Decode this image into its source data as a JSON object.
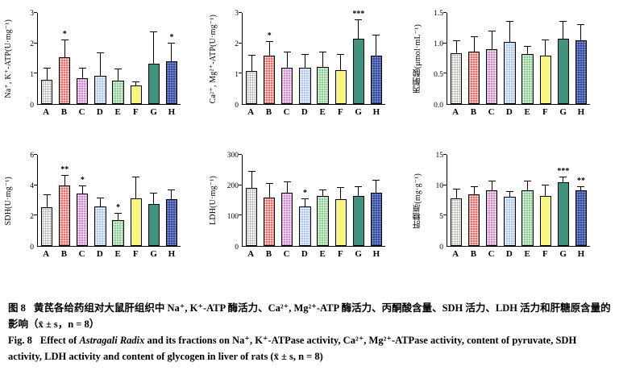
{
  "figure": {
    "caption_cn_label": "图 8",
    "caption_cn_text": "黄芪各给药组对大鼠肝组织中 Na⁺, K⁺-ATP 酶活力、Ca²⁺, Mg²⁺-ATP 酶活力、丙酮酸含量、SDH 活力、LDH 活力和肝糖原含量的影响（x̄ ± s，n = 8）",
    "caption_en_label": "Fig. 8",
    "caption_en_prefix": "Effect of ",
    "caption_en_italic": "Astragali Radix",
    "caption_en_suffix": " and its fractions on Na⁺, K⁺-ATPase activity, Ca²⁺, Mg²⁺-ATPase activity, content of pyruvate, SDH activity, LDH activity and content of glycogen in liver of rats (x̄ ± s, n = 8)"
  },
  "style": {
    "axis_color": "#000000",
    "sig_color": "#000000",
    "bars": {
      "A": {
        "fill": "#f4f3ef",
        "dot": "#a8a8a8"
      },
      "B": {
        "fill": "#ee6e69",
        "dot": "#ffffff"
      },
      "C": {
        "fill": "#d28fd3",
        "dot": "#ffffff"
      },
      "D": {
        "fill": "#afcbe9",
        "dot": "#ffffff"
      },
      "E": {
        "fill": "#8bd091",
        "dot": "#ffffff"
      },
      "F": {
        "fill": "#f9f67d",
        "dot": null
      },
      "G": {
        "fill": "#3f9480",
        "dot": null
      },
      "H": {
        "fill": "#33489f",
        "dot": "#8fa0d8"
      }
    }
  },
  "chart_data": [
    {
      "type": "bar",
      "ylabel": "Na⁺, K⁺-ATP(U·mg⁻¹)",
      "ymax": 3,
      "yticks": [
        "0",
        "1",
        "2",
        "3"
      ],
      "categories": [
        "A",
        "B",
        "C",
        "D",
        "E",
        "F",
        "G",
        "H"
      ],
      "values": [
        0.8,
        1.55,
        0.85,
        0.92,
        0.78,
        0.6,
        1.32,
        1.4
      ],
      "errors": [
        0.38,
        0.55,
        0.33,
        0.75,
        0.35,
        0.12,
        1.05,
        0.6
      ],
      "sig": [
        "",
        "*",
        "",
        "",
        "",
        "",
        "",
        "*"
      ]
    },
    {
      "type": "bar",
      "ylabel": "Ca²⁺, Mg²⁺-ATP(U·mg⁻¹)",
      "ymax": 3,
      "yticks": [
        "0",
        "1",
        "2",
        "3"
      ],
      "categories": [
        "A",
        "B",
        "C",
        "D",
        "E",
        "F",
        "G",
        "H"
      ],
      "values": [
        1.1,
        1.6,
        1.2,
        1.2,
        1.22,
        1.12,
        2.15,
        1.6
      ],
      "errors": [
        0.5,
        0.45,
        0.5,
        0.42,
        0.48,
        0.5,
        0.6,
        0.65
      ],
      "sig": [
        "",
        "*",
        "",
        "",
        "",
        "",
        "***",
        ""
      ]
    },
    {
      "type": "bar",
      "ylabel": "丙酮酸(μmol·mL⁻¹)",
      "ymax": 1.5,
      "yticks": [
        "0.0",
        "0.5",
        "1.0",
        "1.5"
      ],
      "categories": [
        "A",
        "B",
        "C",
        "D",
        "E",
        "F",
        "G",
        "H"
      ],
      "values": [
        0.84,
        0.86,
        0.9,
        1.02,
        0.82,
        0.8,
        1.08,
        1.05
      ],
      "errors": [
        0.2,
        0.24,
        0.3,
        0.33,
        0.12,
        0.25,
        0.27,
        0.25
      ],
      "sig": [
        "",
        "",
        "",
        "",
        "",
        "",
        "",
        ""
      ]
    },
    {
      "type": "bar",
      "ylabel": "SDH(U·mg⁻¹)",
      "ymax": 6,
      "yticks": [
        "0",
        "2",
        "4",
        "6"
      ],
      "categories": [
        "A",
        "B",
        "C",
        "D",
        "E",
        "F",
        "G",
        "H"
      ],
      "values": [
        2.55,
        4.0,
        3.45,
        2.6,
        1.7,
        3.15,
        2.75,
        3.1
      ],
      "errors": [
        0.8,
        0.6,
        0.5,
        0.55,
        0.45,
        1.35,
        0.7,
        0.55
      ],
      "sig": [
        "",
        "**",
        "*",
        "",
        "*",
        "",
        "",
        ""
      ]
    },
    {
      "type": "bar",
      "ylabel": "LDH(U·mg⁻¹)",
      "ymax": 300,
      "yticks": [
        "0",
        "100",
        "200",
        "300"
      ],
      "categories": [
        "A",
        "B",
        "C",
        "D",
        "E",
        "F",
        "G",
        "H"
      ],
      "values": [
        190,
        160,
        175,
        130,
        165,
        155,
        165,
        175
      ],
      "errors": [
        55,
        45,
        35,
        25,
        18,
        35,
        30,
        40
      ],
      "sig": [
        "",
        "",
        "",
        "*",
        "",
        "",
        "",
        ""
      ]
    },
    {
      "type": "bar",
      "ylabel": "肝糖原(mg·g⁻¹)",
      "ymax": 15,
      "yticks": [
        "0",
        "5",
        "10",
        "15"
      ],
      "categories": [
        "A",
        "B",
        "C",
        "D",
        "E",
        "F",
        "G",
        "H"
      ],
      "values": [
        7.8,
        8.5,
        9.2,
        8.1,
        9.1,
        8.2,
        10.5,
        9.2
      ],
      "errors": [
        1.5,
        1.2,
        1.4,
        0.8,
        1.5,
        1.8,
        0.8,
        0.5
      ],
      "sig": [
        "",
        "",
        "",
        "",
        "",
        "",
        "***",
        "**"
      ]
    }
  ]
}
